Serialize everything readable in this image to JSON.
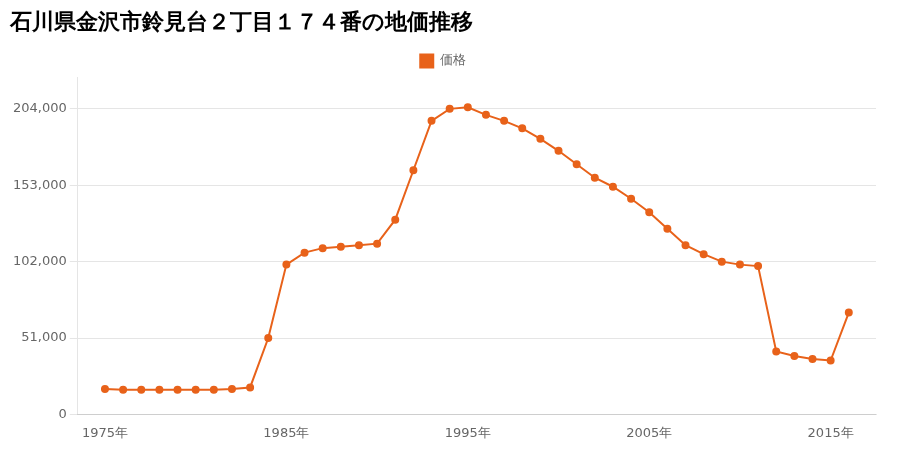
{
  "chart_data": {
    "type": "line",
    "title": "石川県金沢市鈴見台２丁目１７４番の地価推移",
    "x": [
      1975,
      1976,
      1977,
      1978,
      1979,
      1980,
      1981,
      1982,
      1983,
      1984,
      1985,
      1986,
      1987,
      1988,
      1989,
      1990,
      1991,
      1992,
      1993,
      1994,
      1995,
      1996,
      1997,
      1998,
      1999,
      2000,
      2001,
      2002,
      2003,
      2004,
      2005,
      2006,
      2007,
      2008,
      2009,
      2010,
      2011,
      2012,
      2013,
      2014,
      2015,
      2016
    ],
    "series": [
      {
        "name": "価格",
        "color": "#e8621a",
        "marker": "circle",
        "values": [
          17000,
          16500,
          16500,
          16500,
          16500,
          16500,
          16500,
          17000,
          18000,
          51000,
          100000,
          108000,
          111000,
          112000,
          113000,
          114000,
          130000,
          163000,
          196000,
          204000,
          205000,
          200000,
          196000,
          191000,
          184000,
          176000,
          167000,
          158000,
          152000,
          144000,
          135000,
          124000,
          113000,
          107000,
          102000,
          100000,
          99000,
          42000,
          39000,
          37000,
          36000,
          68000
        ]
      }
    ],
    "xlim": [
      1973.5,
      2017.5
    ],
    "xticks": [
      {
        "value": 1975,
        "label": "1975年"
      },
      {
        "value": 1985,
        "label": "1985年"
      },
      {
        "value": 1995,
        "label": "1995年"
      },
      {
        "value": 2005,
        "label": "2005年"
      },
      {
        "value": 2015,
        "label": "2015年"
      }
    ],
    "ylim": [
      0,
      225000
    ],
    "yticks": [
      0,
      {
        "value": 51000,
        "label": "51,000"
      },
      {
        "value": 102000,
        "label": "102,000"
      },
      {
        "value": 153000,
        "label": "153,000"
      },
      {
        "value": 204000,
        "label": "204,000"
      }
    ],
    "grid": "y",
    "legend": "top"
  }
}
